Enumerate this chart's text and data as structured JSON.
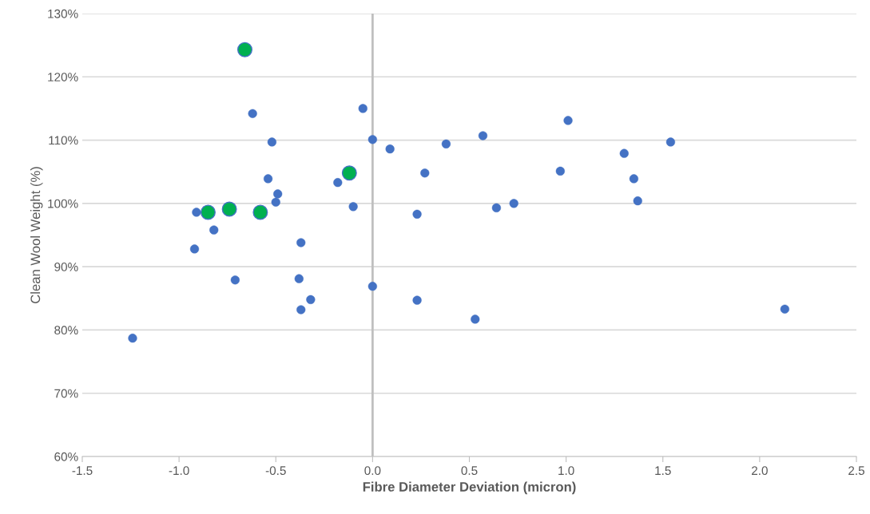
{
  "chart_data": {
    "type": "scatter",
    "xlabel": "Fibre Diameter Deviation (micron)",
    "ylabel": "Clean Wool Weight (%)",
    "xlim": [
      -1.5,
      2.5
    ],
    "xticks": [
      -1.5,
      {
        "value": -1.0,
        "label": "-1.0"
      },
      -0.5,
      {
        "value": 0.0,
        "label": "0.0"
      },
      0.5,
      {
        "value": 1.0,
        "label": "1.0"
      },
      1.5,
      {
        "value": 2.0,
        "label": "2.0"
      },
      2.5
    ],
    "ylim": [
      60,
      130
    ],
    "yticks": [
      {
        "value": 60,
        "label": "60%"
      },
      {
        "value": 70,
        "label": "70%"
      },
      {
        "value": 80,
        "label": "80%"
      },
      {
        "value": 90,
        "label": "90%"
      },
      {
        "value": 100,
        "label": "100%"
      },
      {
        "value": 110,
        "label": "110%"
      },
      {
        "value": 120,
        "label": "120%"
      },
      {
        "value": 130,
        "label": "130%"
      }
    ],
    "grid": "y",
    "marker": "circle",
    "legend": false,
    "series": [
      {
        "color": "#4472c4",
        "x": [
          -1.24,
          -0.92,
          -0.91,
          -0.82,
          -0.71,
          -0.62,
          -0.52,
          -0.54,
          -0.49,
          -0.5,
          -0.37,
          -0.38,
          -0.37,
          -0.32,
          -0.18,
          -0.1,
          -0.05,
          0.0,
          0.0,
          0.09,
          0.23,
          0.27,
          0.23,
          0.38,
          0.53,
          0.57,
          0.64,
          0.73,
          0.97,
          1.01,
          1.3,
          1.35,
          1.37,
          1.54,
          2.13
        ],
        "values": [
          78.7,
          92.8,
          98.6,
          95.8,
          87.9,
          114.2,
          109.7,
          103.9,
          101.5,
          100.2,
          93.8,
          88.1,
          83.2,
          84.8,
          103.3,
          99.5,
          115.0,
          110.1,
          86.9,
          108.6,
          98.3,
          104.8,
          84.7,
          109.4,
          81.7,
          110.7,
          99.3,
          100.0,
          105.1,
          113.1,
          107.9,
          103.9,
          100.4,
          109.7,
          83.3
        ]
      },
      {
        "color": "#00b050",
        "x": [
          -0.66,
          -0.85,
          -0.74,
          -0.58,
          -0.12
        ],
        "values": [
          124.3,
          98.6,
          99.1,
          98.6,
          104.8
        ]
      }
    ]
  }
}
